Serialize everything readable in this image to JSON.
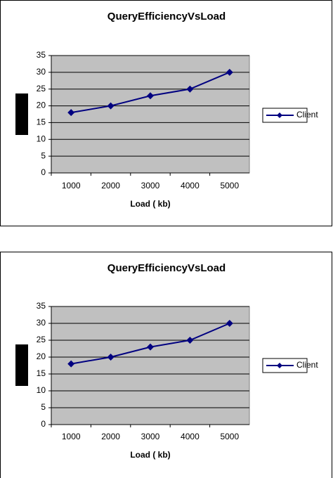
{
  "chart_data": [
    {
      "type": "line",
      "title": "QueryEfficiencyVsLoad",
      "x_label": "Load ( kb)",
      "categories": [
        "1000",
        "2000",
        "3000",
        "4000",
        "5000"
      ],
      "series": [
        {
          "name": "Client",
          "color": "#000080",
          "values": [
            18,
            20,
            23,
            25,
            30
          ]
        }
      ],
      "ylim": [
        0,
        35
      ],
      "yticks": [
        0,
        5,
        10,
        15,
        20,
        25,
        30,
        35
      ],
      "grid": true,
      "legend": "right",
      "plot_background": "#c0c0c0"
    },
    {
      "type": "line",
      "title": "QueryEfficiencyVsLoad",
      "x_label": "Load ( kb)",
      "categories": [
        "1000",
        "2000",
        "3000",
        "4000",
        "5000"
      ],
      "series": [
        {
          "name": "Client",
          "color": "#000080",
          "values": [
            18,
            20,
            23,
            25,
            30
          ]
        }
      ],
      "ylim": [
        0,
        35
      ],
      "yticks": [
        0,
        5,
        10,
        15,
        20,
        25,
        30,
        35
      ],
      "grid": true,
      "legend": "right",
      "plot_background": "#c0c0c0"
    }
  ]
}
